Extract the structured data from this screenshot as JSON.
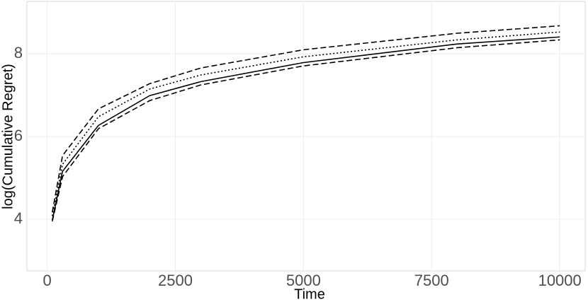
{
  "chart_data": {
    "type": "line",
    "xlabel": "Time",
    "ylabel": "log(Cumulative Regret)",
    "x": [
      100,
      300,
      1000,
      2000,
      3000,
      5000,
      8000,
      10000
    ],
    "series": [
      {
        "color": "#000000",
        "dash": "solid",
        "values": [
          3.98,
          5.16,
          6.27,
          6.99,
          7.33,
          7.79,
          8.24,
          8.41
        ]
      },
      {
        "color": "#000000",
        "dash": "dashed",
        "values": [
          4.17,
          5.54,
          6.67,
          7.28,
          7.66,
          8.1,
          8.5,
          8.68
        ]
      },
      {
        "color": "#000000",
        "dash": "dotted",
        "values": [
          4.08,
          5.33,
          6.48,
          7.15,
          7.49,
          7.93,
          8.34,
          8.53
        ]
      },
      {
        "color": "#000000",
        "dash": "dashed",
        "values": [
          3.95,
          5.03,
          6.19,
          6.87,
          7.25,
          7.71,
          8.15,
          8.34
        ]
      }
    ],
    "xlim": [
      -395,
      10495
    ],
    "xticks": [
      0,
      2500,
      5000,
      7500,
      10000
    ],
    "ylim": [
      2.75,
      9.27
    ],
    "yticks": [
      4,
      6,
      8
    ],
    "grid": true
  }
}
